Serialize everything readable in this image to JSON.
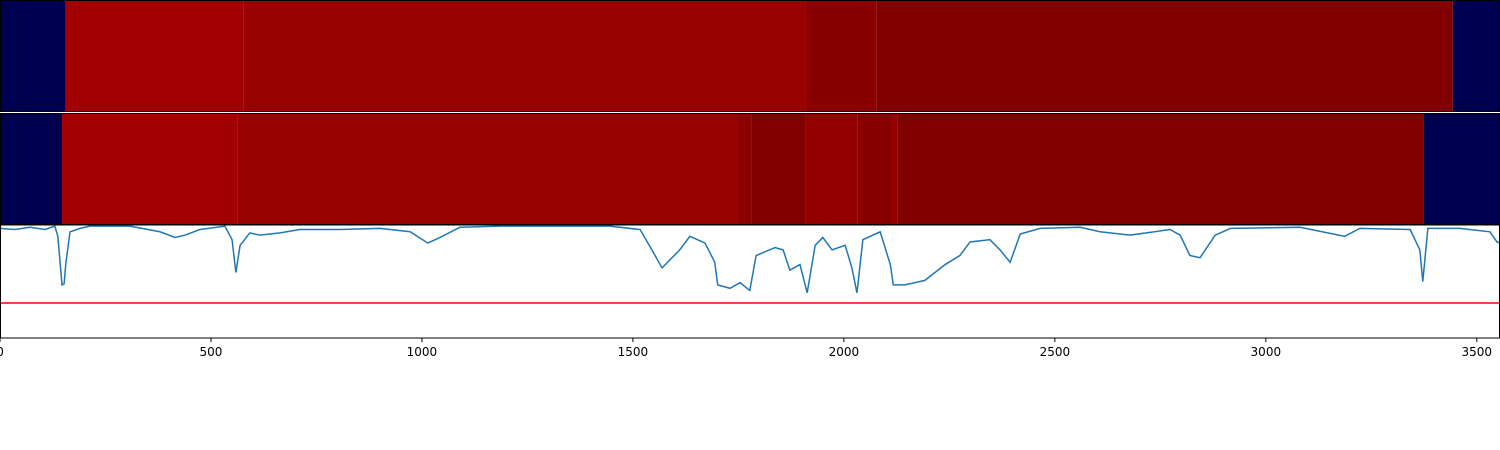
{
  "chart_data": [
    {
      "type": "strip",
      "xlim": [
        0,
        3555
      ],
      "segments": [
        {
          "start": 0,
          "end": 156,
          "color": "#000050"
        },
        {
          "start": 156,
          "end": 578,
          "color": "#a00000"
        },
        {
          "start": 578,
          "end": 1908,
          "color": "#990000"
        },
        {
          "start": 1908,
          "end": 2078,
          "color": "#8a0000"
        },
        {
          "start": 2078,
          "end": 3443,
          "color": "#800000"
        },
        {
          "start": 3443,
          "end": 3555,
          "color": "#000050"
        }
      ]
    },
    {
      "type": "strip",
      "xlim": [
        0,
        3555
      ],
      "segments": [
        {
          "start": 0,
          "end": 147,
          "color": "#000050"
        },
        {
          "start": 147,
          "end": 562,
          "color": "#a00000"
        },
        {
          "start": 562,
          "end": 1749,
          "color": "#990000"
        },
        {
          "start": 1749,
          "end": 1782,
          "color": "#8c0000"
        },
        {
          "start": 1782,
          "end": 1910,
          "color": "#800000"
        },
        {
          "start": 1910,
          "end": 2033,
          "color": "#930000"
        },
        {
          "start": 2033,
          "end": 2114,
          "color": "#880000"
        },
        {
          "start": 2114,
          "end": 2128,
          "color": "#990000"
        },
        {
          "start": 2128,
          "end": 3374,
          "color": "#800000"
        },
        {
          "start": 3374,
          "end": 3555,
          "color": "#000050"
        }
      ]
    },
    {
      "type": "line",
      "xlim": [
        0,
        3555
      ],
      "ylim": [
        0,
        1
      ],
      "xticks": [
        0,
        500,
        1000,
        1500,
        2000,
        2500,
        3000,
        3500
      ],
      "hline": {
        "value": 0.31,
        "color": "#ff0000"
      },
      "series": [
        {
          "color": "#1f77b4",
          "x": [
            0,
            35,
            71,
            107,
            130,
            137,
            147,
            152,
            156,
            166,
            190,
            213,
            308,
            379,
            415,
            438,
            474,
            533,
            550,
            559,
            569,
            592,
            616,
            664,
            711,
            806,
            900,
            972,
            1014,
            1043,
            1090,
            1185,
            1327,
            1445,
            1517,
            1545,
            1569,
            1611,
            1635,
            1671,
            1694,
            1701,
            1730,
            1754,
            1777,
            1792,
            1837,
            1856,
            1872,
            1896,
            1913,
            1932,
            1950,
            1972,
            2003,
            2019,
            2031,
            2045,
            2086,
            2110,
            2117,
            2145,
            2192,
            2240,
            2275,
            2299,
            2346,
            2370,
            2394,
            2418,
            2465,
            2560,
            2607,
            2678,
            2773,
            2797,
            2820,
            2844,
            2880,
            2916,
            3081,
            3187,
            3223,
            3342,
            3365,
            3372,
            3384,
            3460,
            3531,
            3548,
            3555
          ],
          "values": [
            0.97,
            0.96,
            0.98,
            0.96,
            0.99,
            0.9,
            0.47,
            0.48,
            0.66,
            0.94,
            0.97,
            0.99,
            0.99,
            0.94,
            0.89,
            0.91,
            0.96,
            0.99,
            0.87,
            0.58,
            0.82,
            0.93,
            0.91,
            0.93,
            0.96,
            0.96,
            0.97,
            0.94,
            0.84,
            0.89,
            0.98,
            0.99,
            0.99,
            0.99,
            0.96,
            0.78,
            0.62,
            0.78,
            0.9,
            0.84,
            0.67,
            0.47,
            0.44,
            0.49,
            0.42,
            0.73,
            0.8,
            0.78,
            0.6,
            0.65,
            0.4,
            0.82,
            0.89,
            0.78,
            0.82,
            0.62,
            0.4,
            0.87,
            0.94,
            0.65,
            0.47,
            0.47,
            0.51,
            0.65,
            0.73,
            0.85,
            0.87,
            0.78,
            0.67,
            0.92,
            0.97,
            0.98,
            0.94,
            0.91,
            0.96,
            0.91,
            0.73,
            0.71,
            0.91,
            0.97,
            0.98,
            0.9,
            0.97,
            0.96,
            0.78,
            0.5,
            0.97,
            0.97,
            0.94,
            0.85,
            0.84
          ]
        }
      ]
    }
  ]
}
